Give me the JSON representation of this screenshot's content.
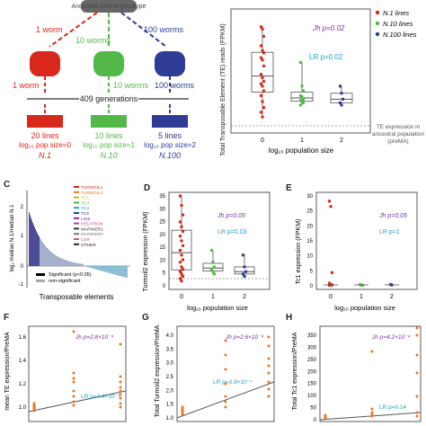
{
  "colors": {
    "red": "#d8281c",
    "green": "#52b848",
    "blue": "#2e3c96",
    "purple": "#7b2fa5",
    "teal": "#1aa3c9",
    "orange": "#e8761f",
    "box": "#555555",
    "grey": "#888888"
  },
  "panelA": {
    "root": "Ancestral control genotype",
    "arrow_labels": {
      "left_top": "1 worm",
      "mid_top": "10 worms",
      "right_top": "100 worms",
      "left_bottom": "1 worm",
      "mid_bottom": "10 worms",
      "right_bottom": "100 worms"
    },
    "generations": "409 generations",
    "lines": [
      {
        "count": "20 lines",
        "size": "log₁₀ pop size=0",
        "name": "N.1",
        "color": "#d8281c"
      },
      {
        "count": "10 lines",
        "size": "log₁₀ pop size=1",
        "name": "N.10",
        "color": "#52b848"
      },
      {
        "count": "5 lines",
        "size": "log₁₀ pop size=2",
        "name": "N.100",
        "color": "#2e3c96"
      }
    ]
  },
  "panelB": {
    "ylabel": "Total Transposable Element (TE) reads (FPKM)",
    "xlabel": "log₁₀ population size",
    "legend": [
      "N.1 lines",
      "N.10 lines",
      "N.100 lines"
    ],
    "jh": "Jh p=0.02",
    "lr": "LR p=0.02",
    "prema": "TE expression in ancestral population (preMA)",
    "chart_data": {
      "type": "box",
      "categories": [
        "0",
        "1",
        "2"
      ],
      "ylim": [
        0,
        100
      ],
      "points": [
        [
          88,
          86,
          80,
          72,
          68,
          66,
          62,
          60,
          55,
          48,
          45,
          42,
          40,
          38,
          34,
          30,
          25,
          20,
          16,
          12
        ],
        [
          58,
          38,
          34,
          30,
          29,
          27,
          26,
          25,
          24,
          22
        ],
        [
          38,
          32,
          27,
          24,
          22
        ]
      ],
      "prema_level": 7
    }
  },
  "panelC": {
    "label": "C",
    "ylabel": "log₂ median N.1/median N.1",
    "xlabel": "Transposable elements",
    "families": [
      "TURMOIL1",
      "TURMOIL2",
      "TC1",
      "TC3",
      "TC4",
      "TC5",
      "LINE",
      "HELITRON",
      "MARINER1",
      "MARINER2",
      "CER",
      "OTHER"
    ],
    "legend_sig": "Significant (p<0.05)",
    "legend_nonsig": "non-significant",
    "ticks": [
      "2",
      "1",
      "0",
      "-1"
    ]
  },
  "panelD": {
    "label": "D",
    "ylabel": "Turmoil2 expression (FPKM)",
    "xlabel": "log₁₀ population size",
    "jh": "Jh p=0.05",
    "lr": "LR p=0.03",
    "ticks": [
      "35",
      "30",
      "25",
      "20",
      "15",
      "10",
      "5",
      "0"
    ],
    "chart_data": {
      "type": "box",
      "categories": [
        "0",
        "1",
        "2"
      ],
      "ylim": [
        0,
        38
      ],
      "points": [
        [
          38,
          34,
          30,
          27,
          25,
          23,
          21,
          19,
          17,
          15,
          13,
          11,
          10,
          8,
          7,
          6,
          5,
          4,
          3,
          2
        ],
        [
          15,
          10,
          8,
          7,
          6,
          5
        ],
        [
          13,
          8,
          6,
          5,
          4
        ]
      ]
    }
  },
  "panelE": {
    "label": "E",
    "ylabel": "Tc1 expression (FPKM)",
    "xlabel": "log₁₀ population size",
    "jh": "Jh p=0.05",
    "lr": "LR p=1",
    "ticks": [
      "30",
      "25",
      "20",
      "15",
      "10",
      "5",
      "0"
    ],
    "chart_data": {
      "type": "scatter",
      "categories": [
        "0",
        "1",
        "2"
      ],
      "ylim": [
        0,
        34
      ],
      "points": [
        [
          32,
          30,
          5,
          1,
          0.5,
          0.3,
          0.2
        ],
        [
          0.5,
          0.3,
          0.2
        ],
        [
          0.5,
          0.3
        ]
      ]
    }
  },
  "panelF": {
    "label": "F",
    "ylabel": "mean TE expression/PreMA",
    "jh": "Jh p=2.8×10⁻⁴",
    "lr": "LR p=4.4×10⁻⁴",
    "ticks": [
      "1.6",
      "1.4",
      "1.2",
      "1.0"
    ]
  },
  "panelG": {
    "label": "G",
    "ylabel": "Total Turmoil2 expression/PreMA",
    "jh": "Jh p=2.6×10⁻⁴",
    "lr": "LR p=3.9×10⁻⁴",
    "ticks": [
      "4.0",
      "3.5",
      "3.0",
      "2.5",
      "2.0",
      "1.5",
      "1.0"
    ]
  },
  "panelH": {
    "label": "H",
    "ylabel": "Total Tc1 expression/PreMA",
    "jh": "Jh p=4.2×10⁻⁴",
    "lr": "LR p=0.14",
    "ticks": [
      "350",
      "300",
      "250",
      "200",
      "150",
      "100",
      "50",
      "0"
    ]
  }
}
